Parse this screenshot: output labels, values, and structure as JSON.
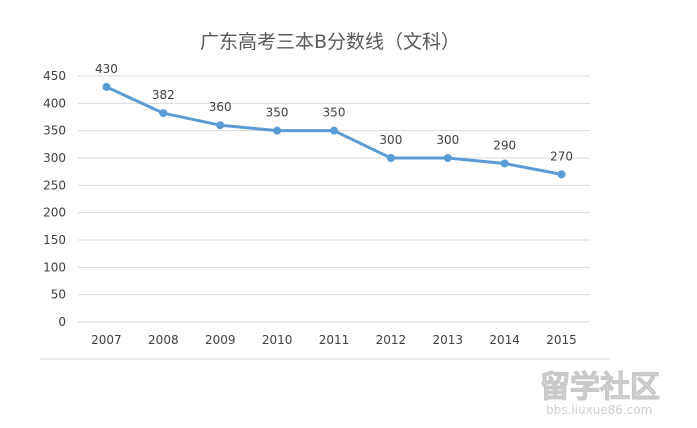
{
  "chart_data": {
    "type": "line",
    "title": "广东高考三本B分数线（文科）",
    "categories": [
      "2007",
      "2008",
      "2009",
      "2010",
      "2011",
      "2012",
      "2013",
      "2014",
      "2015"
    ],
    "series": [
      {
        "values": [
          430,
          382,
          360,
          350,
          350,
          300,
          300,
          290,
          270
        ],
        "color": "#5b9bd5"
      }
    ],
    "data_labels": [
      "430",
      "382",
      "360",
      "350",
      "350",
      "300",
      "300",
      "290",
      "270"
    ],
    "yticks": [
      "0",
      "50",
      "100",
      "150",
      "200",
      "250",
      "300",
      "350",
      "400",
      "450"
    ],
    "ylim": [
      0,
      450
    ],
    "xlabel": "",
    "ylabel": "",
    "grid": true,
    "legend": "none"
  },
  "watermark": {
    "text": "留学社区",
    "url": "bbs.liuxue86.com"
  }
}
